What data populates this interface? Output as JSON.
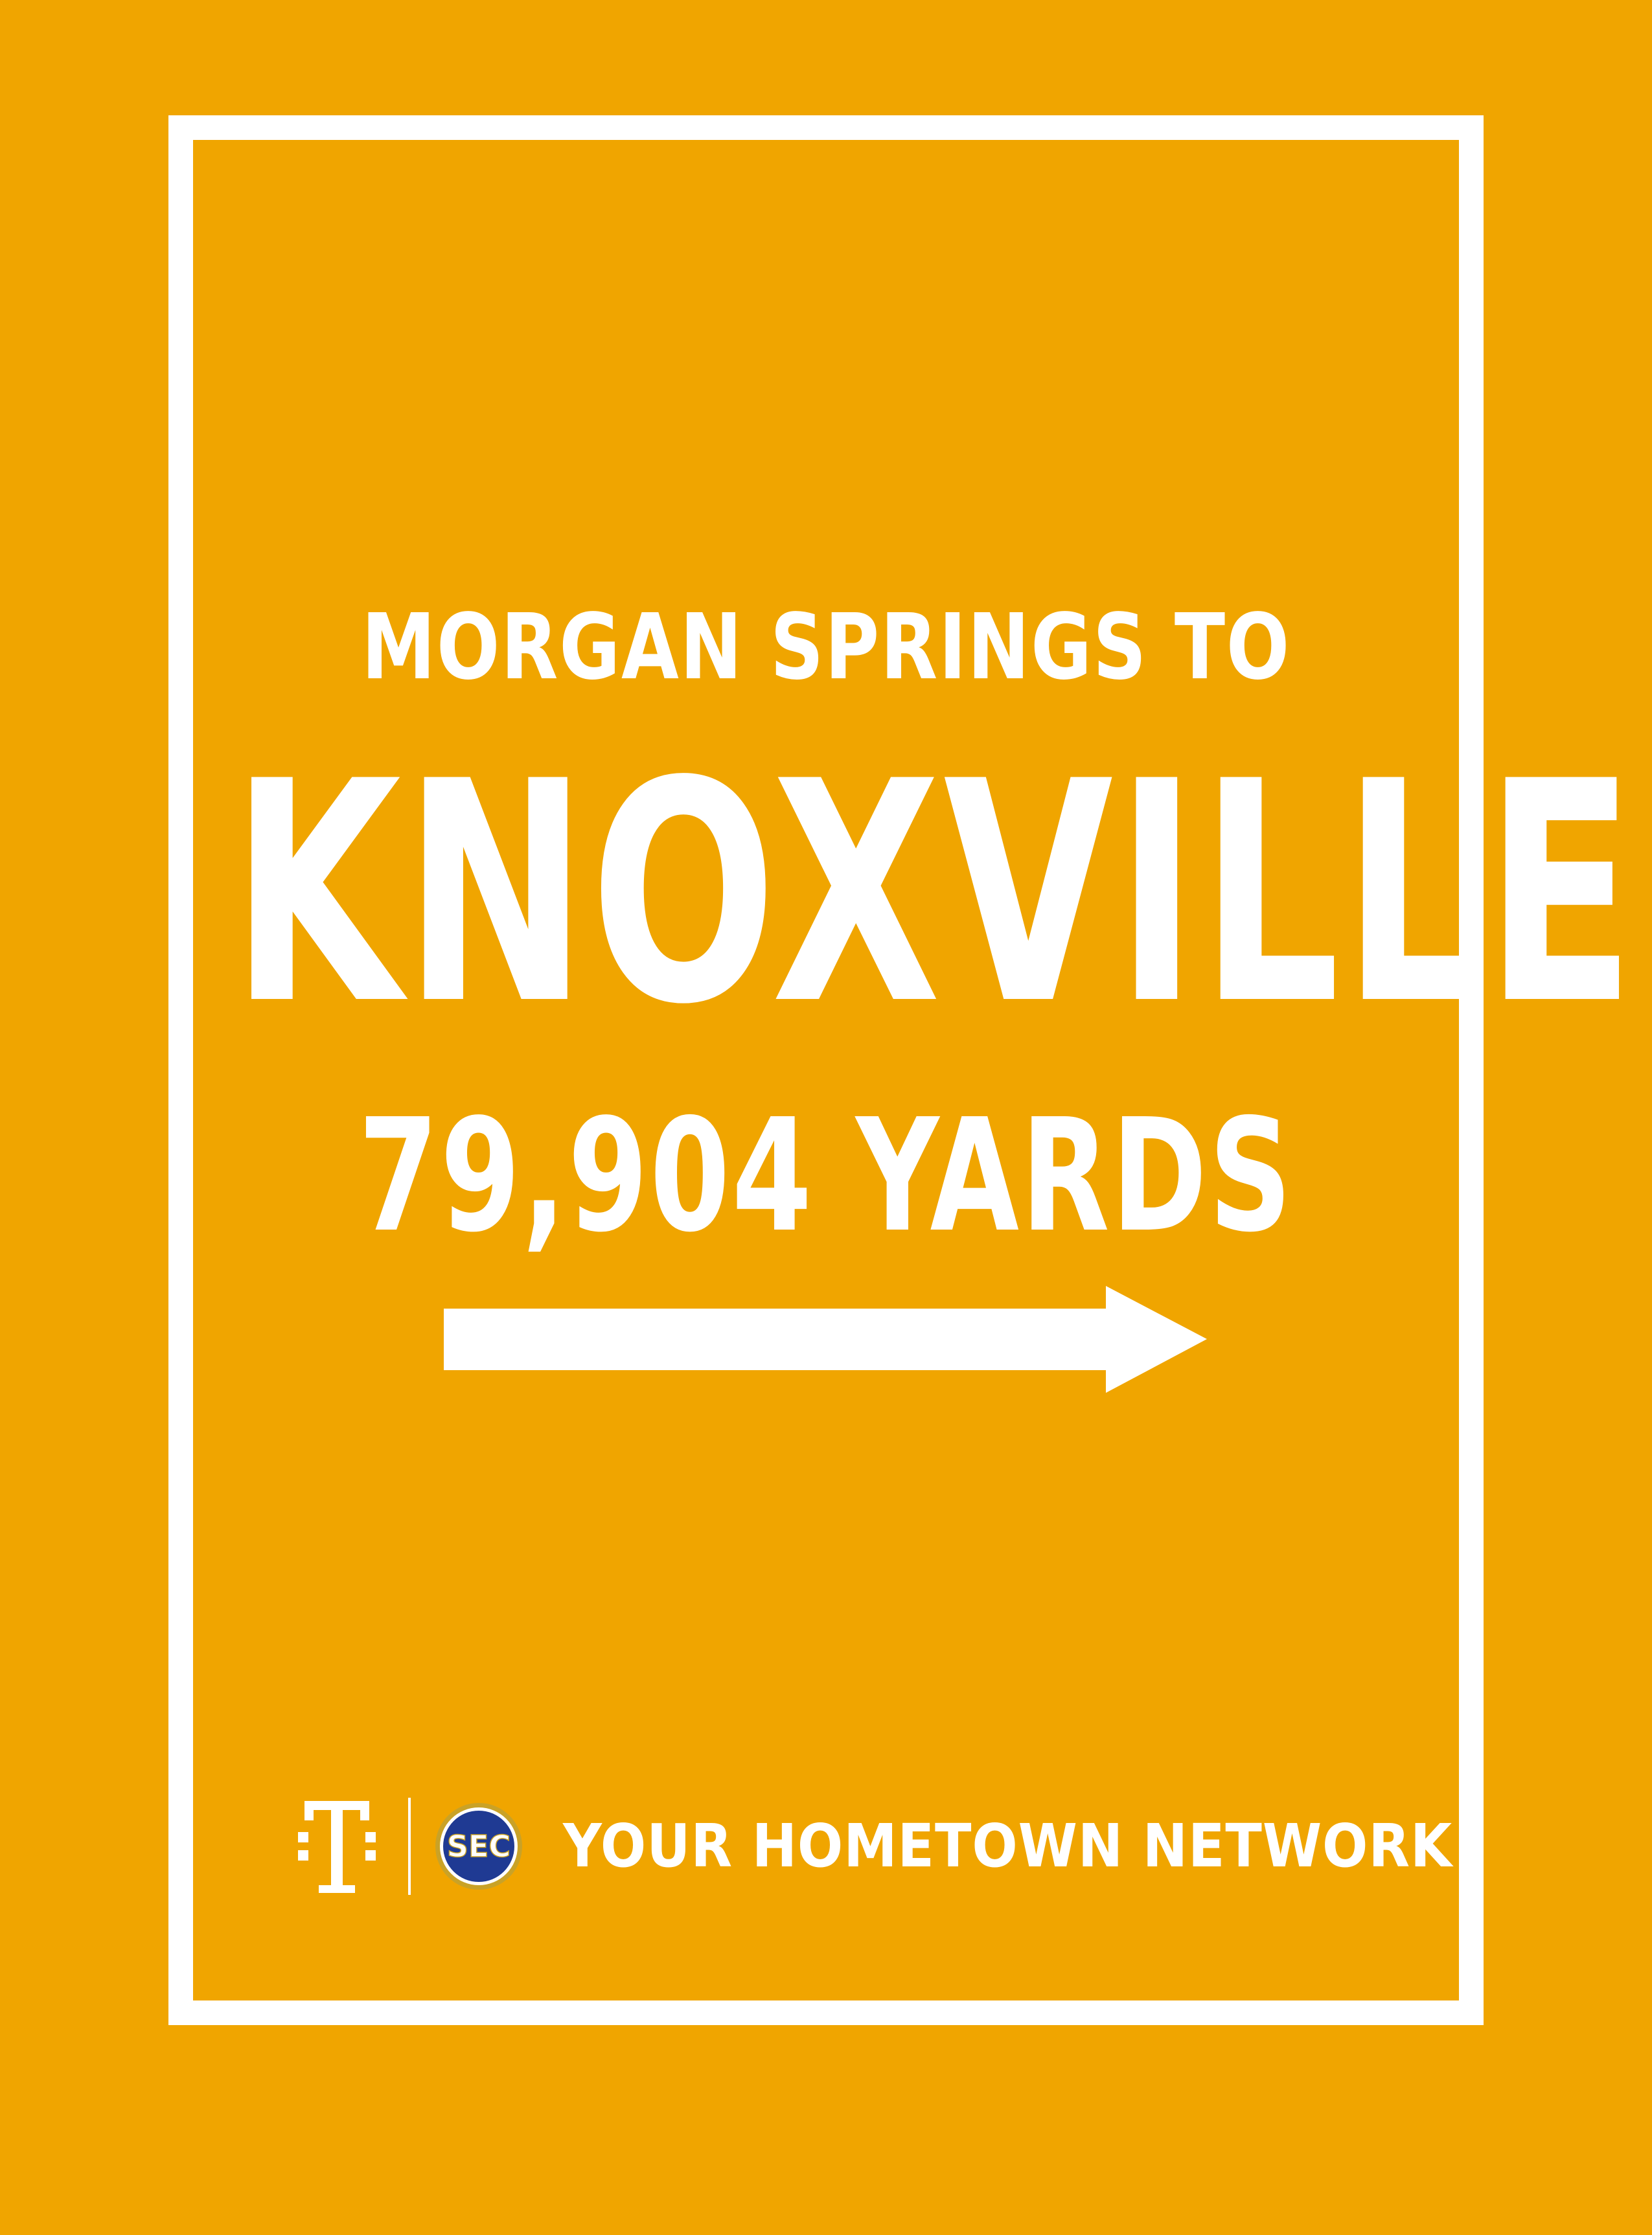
{
  "sign": {
    "subtitle": "MORGAN SPRINGS TO",
    "city": "KNOXVILLE",
    "distance": "79,904 YARDS",
    "arrow_icon": "arrow-right-icon"
  },
  "footer": {
    "brand_icon": "t-mobile-logo-icon",
    "partner_icon": "sec-logo-icon",
    "partner_text": "SEC",
    "tagline": "YOUR HOMETOWN NETWORK"
  },
  "colors": {
    "background": "#F0A500",
    "foreground": "#FFFFFF",
    "sec_blue": "#1F3A93",
    "sec_gold": "#C9A227"
  }
}
